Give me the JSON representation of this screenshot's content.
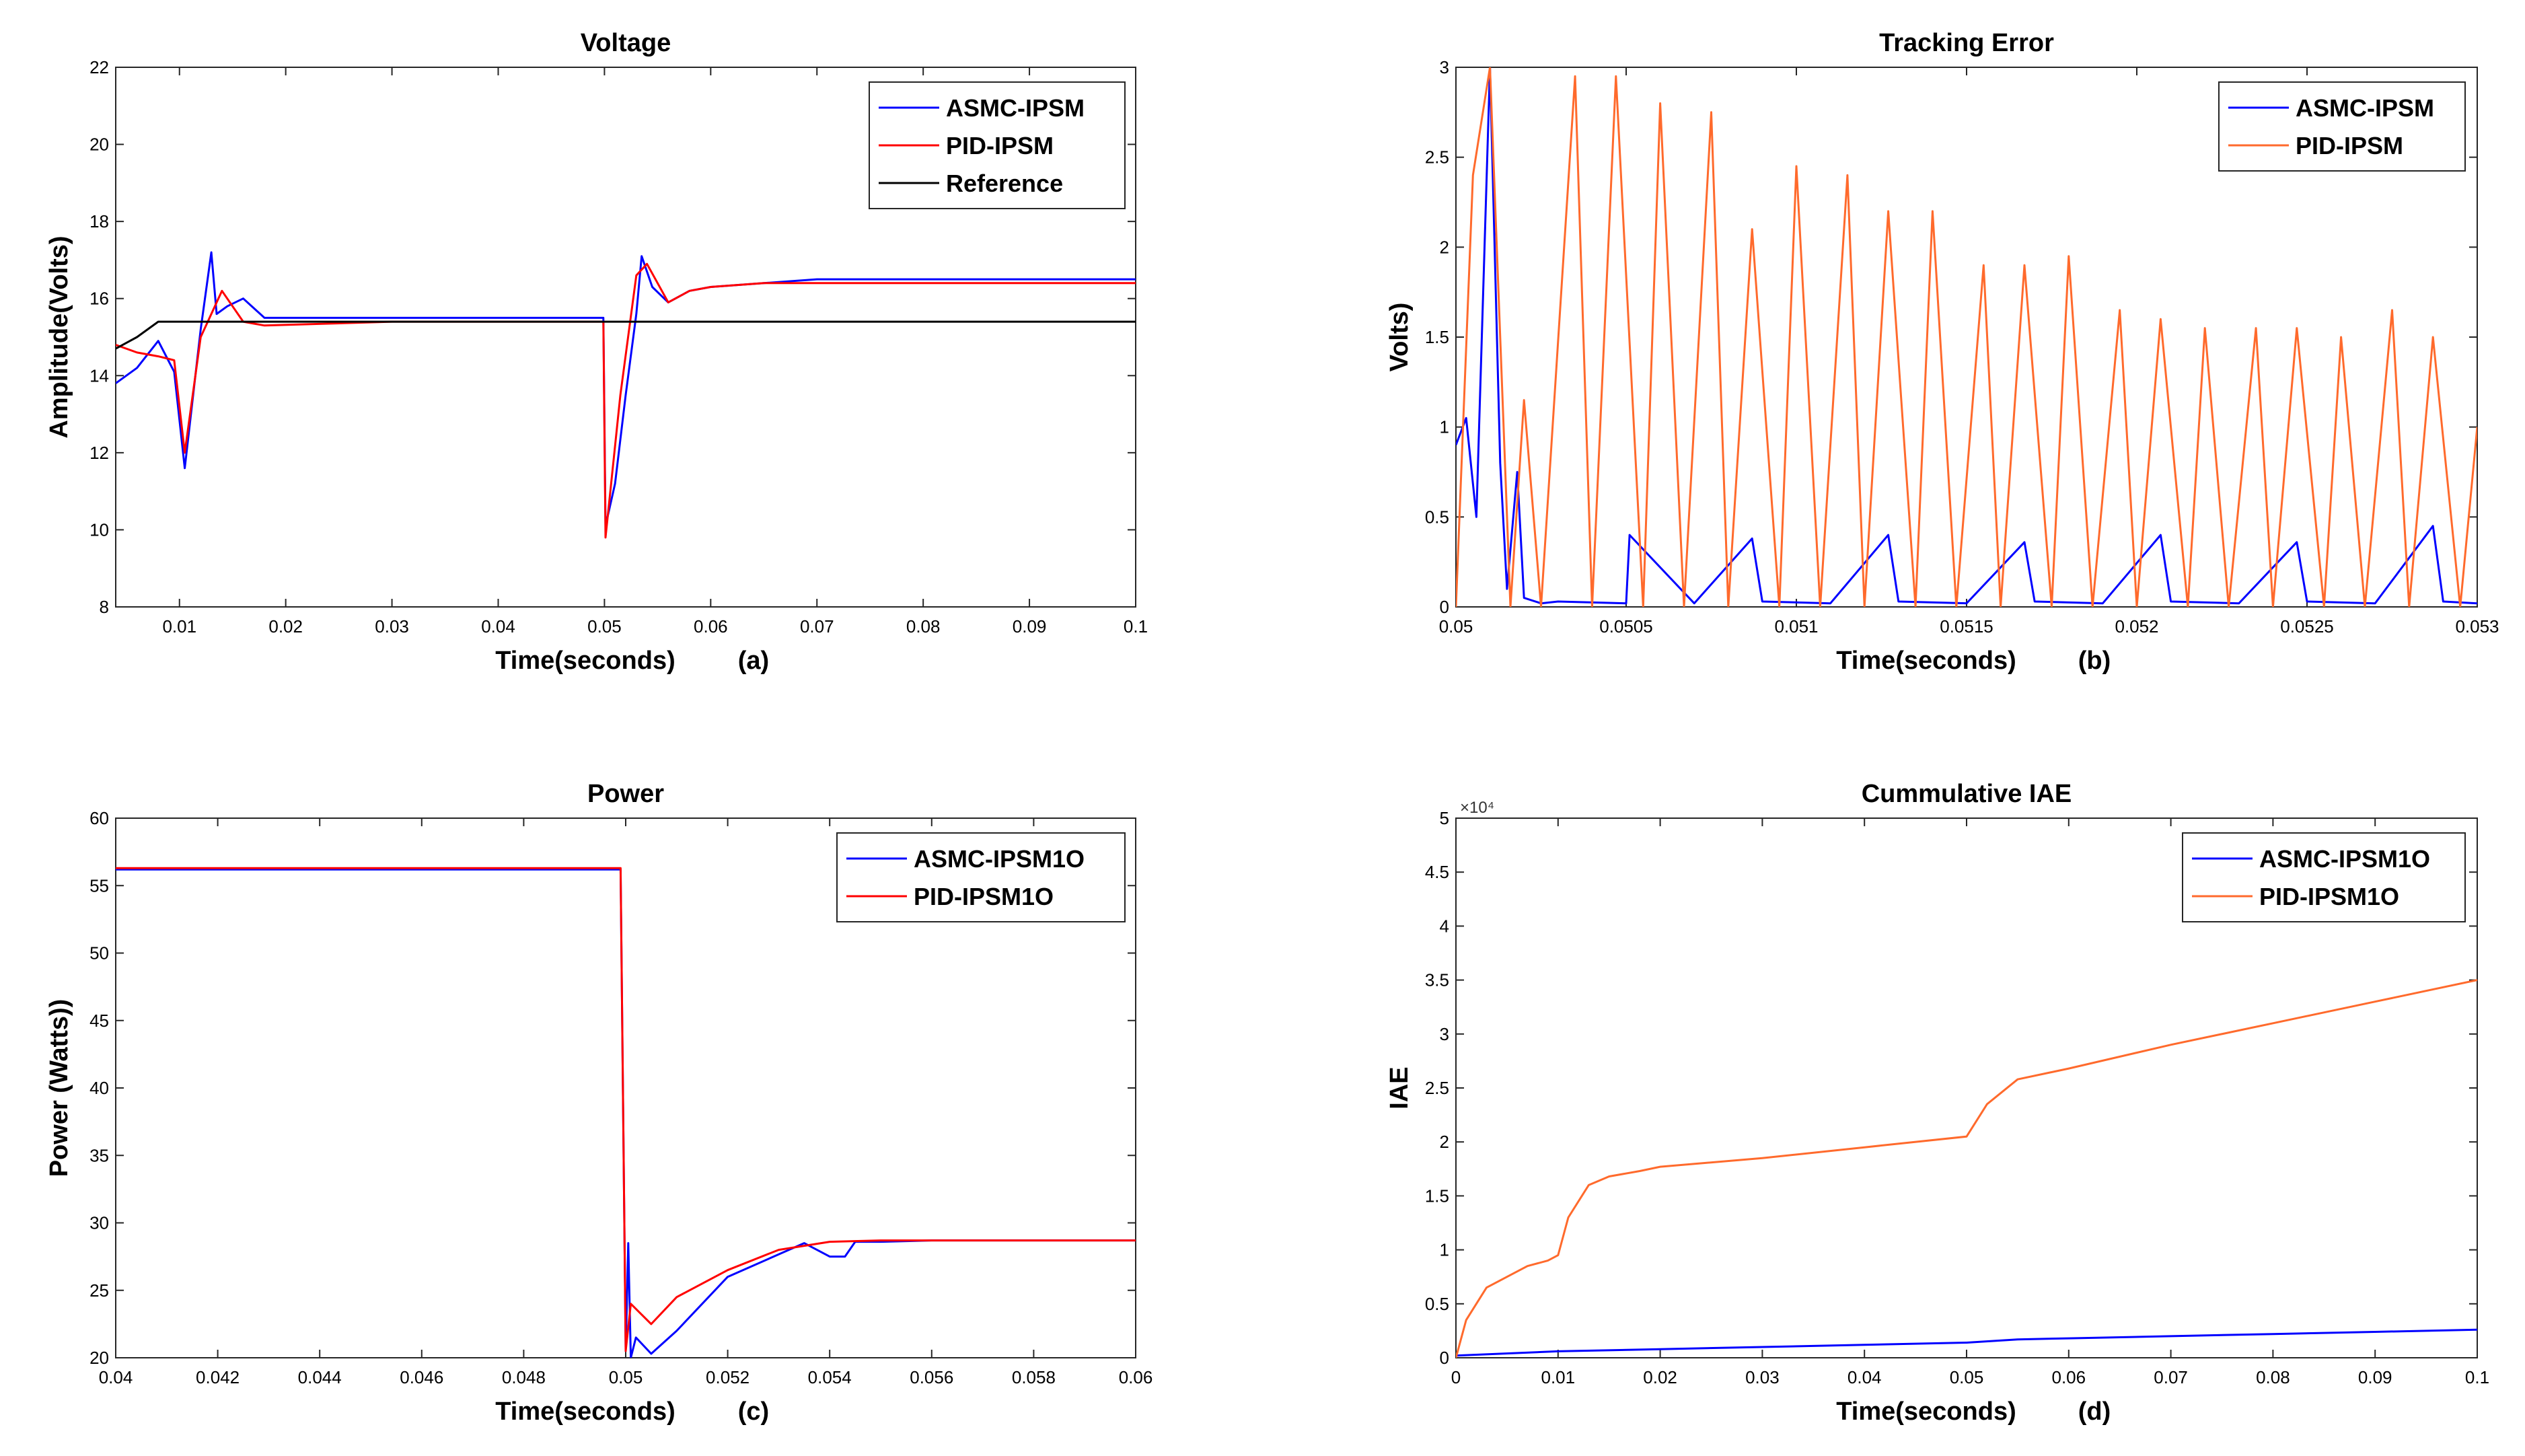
{
  "colors": {
    "blue": "#0000ff",
    "red": "#ff0000",
    "orange": "#ff6a2c",
    "black": "#000000"
  },
  "chart_data": [
    {
      "type": "line",
      "title": "Voltage",
      "xlabel": "Time(seconds)",
      "ylabel": "Amplitude(Volts)",
      "panel": "(a)",
      "xlim": [
        0.004,
        0.1
      ],
      "ylim": [
        8,
        22
      ],
      "xticks": [
        0.01,
        0.02,
        0.03,
        0.04,
        0.05,
        0.06,
        0.07,
        0.08,
        0.09,
        0.1
      ],
      "xtick_labels": [
        "0.01",
        "0.02",
        "0.03",
        "0.04",
        "0.05",
        "0.06",
        "0.07",
        "0.08",
        "0.09",
        "0.1"
      ],
      "yticks": [
        8,
        10,
        12,
        14,
        16,
        18,
        20,
        22
      ],
      "ytick_labels": [
        "8",
        "10",
        "12",
        "14",
        "16",
        "18",
        "20",
        "22"
      ],
      "legend_position": "top-right",
      "series": [
        {
          "name": "ASMC-IPSM",
          "color": "#0000ff",
          "x": [
            0.004,
            0.006,
            0.008,
            0.0095,
            0.0105,
            0.012,
            0.013,
            0.0135,
            0.0145,
            0.016,
            0.018,
            0.03,
            0.0499,
            0.0501,
            0.051,
            0.052,
            0.053,
            0.0535,
            0.0545,
            0.056,
            0.058,
            0.06,
            0.065,
            0.07,
            0.08,
            0.1
          ],
          "y": [
            13.8,
            14.2,
            14.9,
            14.1,
            11.6,
            15.2,
            17.2,
            15.6,
            15.8,
            16.0,
            15.5,
            15.5,
            15.5,
            10.1,
            11.2,
            13.5,
            15.6,
            17.1,
            16.3,
            15.9,
            16.2,
            16.3,
            16.4,
            16.5,
            16.5,
            16.5
          ]
        },
        {
          "name": "PID-IPSM",
          "color": "#ff0000",
          "x": [
            0.004,
            0.006,
            0.008,
            0.0095,
            0.0105,
            0.012,
            0.014,
            0.016,
            0.018,
            0.03,
            0.0499,
            0.0501,
            0.0515,
            0.053,
            0.054,
            0.056,
            0.058,
            0.06,
            0.065,
            0.07,
            0.08,
            0.1
          ],
          "y": [
            14.8,
            14.6,
            14.5,
            14.4,
            12.0,
            15.0,
            16.2,
            15.4,
            15.3,
            15.4,
            15.4,
            9.8,
            13.5,
            16.6,
            16.9,
            15.9,
            16.2,
            16.3,
            16.4,
            16.4,
            16.4,
            16.4
          ]
        },
        {
          "name": "Reference",
          "color": "#000000",
          "x": [
            0.004,
            0.006,
            0.008,
            0.1
          ],
          "y": [
            14.7,
            15.0,
            15.4,
            15.4
          ]
        }
      ]
    },
    {
      "type": "line",
      "title": "Tracking Error",
      "xlabel": "Time(seconds)",
      "ylabel": "Volts)",
      "panel": "(b)",
      "xlim": [
        0.05,
        0.053
      ],
      "ylim": [
        0,
        3
      ],
      "xticks": [
        0.05,
        0.0505,
        0.051,
        0.0515,
        0.052,
        0.0525,
        0.053
      ],
      "xtick_labels": [
        "0.05",
        "0.0505",
        "0.051",
        "0.0515",
        "0.052",
        "0.0525",
        "0.053"
      ],
      "yticks": [
        0,
        0.5,
        1,
        1.5,
        2,
        2.5,
        3
      ],
      "ytick_labels": [
        "0",
        "0.5",
        "1",
        "1.5",
        "2",
        "2.5",
        "3"
      ],
      "legend_position": "top-right",
      "series": [
        {
          "name": "ASMC-IPSM",
          "color": "#0000ff",
          "x": [
            0.05,
            0.05003,
            0.05006,
            0.0501,
            0.05013,
            0.05015,
            0.05018,
            0.0502,
            0.05025,
            0.0503,
            0.0505,
            0.05051,
            0.0507,
            0.05087,
            0.0509,
            0.0511,
            0.05127,
            0.0513,
            0.0515,
            0.05167,
            0.0517,
            0.0519,
            0.05207,
            0.0521,
            0.0523,
            0.05247,
            0.0525,
            0.0527,
            0.05287,
            0.0529,
            0.053
          ],
          "y": [
            0.9,
            1.05,
            0.5,
            3.0,
            0.8,
            0.1,
            0.75,
            0.05,
            0.02,
            0.03,
            0.02,
            0.4,
            0.02,
            0.38,
            0.03,
            0.02,
            0.4,
            0.03,
            0.02,
            0.36,
            0.03,
            0.02,
            0.4,
            0.03,
            0.02,
            0.36,
            0.03,
            0.02,
            0.45,
            0.03,
            0.02
          ]
        },
        {
          "name": "PID-IPSM",
          "color": "#ff6a2c",
          "x": [
            0.05,
            0.05005,
            0.0501,
            0.05016,
            0.0502,
            0.05025,
            0.05035,
            0.0504,
            0.05047,
            0.05055,
            0.0506,
            0.05067,
            0.05075,
            0.0508,
            0.05087,
            0.05095,
            0.051,
            0.05107,
            0.05115,
            0.0512,
            0.05127,
            0.05135,
            0.0514,
            0.05147,
            0.05155,
            0.0516,
            0.05167,
            0.05175,
            0.0518,
            0.05187,
            0.05195,
            0.052,
            0.05207,
            0.05215,
            0.0522,
            0.05227,
            0.05235,
            0.0524,
            0.05247,
            0.05255,
            0.0526,
            0.05267,
            0.05275,
            0.0528,
            0.05287,
            0.05295,
            0.053
          ],
          "y": [
            0.0,
            2.4,
            3.0,
            0.0,
            1.15,
            0.0,
            2.95,
            0.0,
            2.95,
            0.0,
            2.8,
            0.0,
            2.75,
            0.0,
            2.1,
            0.0,
            2.45,
            0.0,
            2.4,
            0.0,
            2.2,
            0.0,
            2.2,
            0.0,
            1.9,
            0.0,
            1.9,
            0.0,
            1.95,
            0.0,
            1.65,
            0.0,
            1.6,
            0.0,
            1.55,
            0.0,
            1.55,
            0.0,
            1.55,
            0.0,
            1.5,
            0.0,
            1.65,
            0.0,
            1.5,
            0.0,
            1.0
          ]
        }
      ]
    },
    {
      "type": "line",
      "title": "Power",
      "xlabel": "Time(seconds)",
      "ylabel": "Power (Watts))",
      "panel": "(c)",
      "xlim": [
        0.04,
        0.06
      ],
      "ylim": [
        20,
        60
      ],
      "xticks": [
        0.04,
        0.042,
        0.044,
        0.046,
        0.048,
        0.05,
        0.052,
        0.054,
        0.056,
        0.058,
        0.06
      ],
      "xtick_labels": [
        "0.04",
        "0.042",
        "0.044",
        "0.046",
        "0.048",
        "0.05",
        "0.052",
        "0.054",
        "0.056",
        "0.058",
        "0.06"
      ],
      "yticks": [
        20,
        25,
        30,
        35,
        40,
        45,
        50,
        55,
        60
      ],
      "ytick_labels": [
        "20",
        "25",
        "30",
        "35",
        "40",
        "45",
        "50",
        "55",
        "60"
      ],
      "legend_position": "top-right",
      "series": [
        {
          "name": "ASMC-IPSM1O",
          "color": "#0000ff",
          "x": [
            0.04,
            0.0499,
            0.05,
            0.05005,
            0.0501,
            0.0502,
            0.0505,
            0.051,
            0.052,
            0.0535,
            0.054,
            0.0543,
            0.0545,
            0.055,
            0.056,
            0.058,
            0.06
          ],
          "y": [
            56.2,
            56.2,
            20.5,
            28.5,
            20.0,
            21.5,
            20.3,
            22.0,
            26.0,
            28.5,
            27.5,
            27.5,
            28.6,
            28.6,
            28.7,
            28.7,
            28.7
          ]
        },
        {
          "name": "PID-IPSM1O",
          "color": "#ff0000",
          "x": [
            0.04,
            0.0499,
            0.05,
            0.0501,
            0.0505,
            0.051,
            0.052,
            0.053,
            0.054,
            0.055,
            0.056,
            0.058,
            0.06
          ],
          "y": [
            56.3,
            56.3,
            20.5,
            24.0,
            22.5,
            24.5,
            26.5,
            28.0,
            28.6,
            28.7,
            28.7,
            28.7,
            28.7
          ]
        }
      ]
    },
    {
      "type": "line",
      "title": "Cummulative IAE",
      "xlabel": "Time(seconds)",
      "ylabel": "IAE",
      "panel": "(d)",
      "exponent_label": "×10⁴",
      "xlim": [
        0,
        0.1
      ],
      "ylim": [
        0,
        5
      ],
      "xticks": [
        0,
        0.01,
        0.02,
        0.03,
        0.04,
        0.05,
        0.06,
        0.07,
        0.08,
        0.09,
        0.1
      ],
      "xtick_labels": [
        "0",
        "0.01",
        "0.02",
        "0.03",
        "0.04",
        "0.05",
        "0.06",
        "0.07",
        "0.08",
        "0.09",
        "0.1"
      ],
      "yticks": [
        0,
        0.5,
        1,
        1.5,
        2,
        2.5,
        3,
        3.5,
        4,
        4.5,
        5
      ],
      "ytick_labels": [
        "0",
        "0.5",
        "1",
        "1.5",
        "2",
        "2.5",
        "3",
        "3.5",
        "4",
        "4.5",
        "5"
      ],
      "legend_position": "top-right",
      "series": [
        {
          "name": "ASMC-IPSM1O",
          "color": "#0000ff",
          "x": [
            0,
            0.01,
            0.02,
            0.03,
            0.04,
            0.05,
            0.055,
            0.06,
            0.07,
            0.08,
            0.09,
            0.1
          ],
          "y": [
            0.02,
            0.06,
            0.08,
            0.1,
            0.12,
            0.14,
            0.17,
            0.18,
            0.2,
            0.22,
            0.24,
            0.26
          ]
        },
        {
          "name": "PID-IPSM1O",
          "color": "#ff6a2c",
          "x": [
            0,
            0.001,
            0.003,
            0.005,
            0.007,
            0.009,
            0.01,
            0.011,
            0.013,
            0.015,
            0.018,
            0.02,
            0.03,
            0.04,
            0.05,
            0.052,
            0.055,
            0.06,
            0.07,
            0.08,
            0.09,
            0.1
          ],
          "y": [
            0.0,
            0.35,
            0.65,
            0.75,
            0.85,
            0.9,
            0.95,
            1.3,
            1.6,
            1.68,
            1.73,
            1.77,
            1.85,
            1.95,
            2.05,
            2.35,
            2.58,
            2.68,
            2.9,
            3.1,
            3.3,
            3.5
          ]
        }
      ]
    }
  ]
}
